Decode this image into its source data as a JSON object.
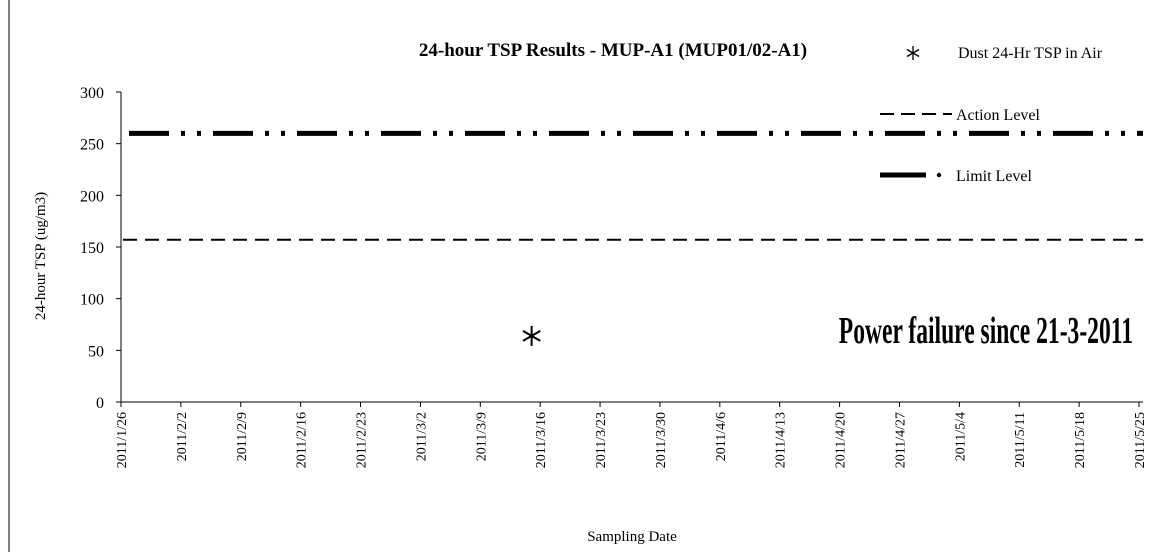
{
  "chart_data": {
    "type": "scatter",
    "title": "24-hour TSP Results - MUP-A1 (MUP01/02-A1)",
    "xlabel": "Sampling Date",
    "ylabel": "24-hour TSP (ug/m3)",
    "ylim": [
      0,
      300
    ],
    "yticks": [
      "0",
      "50",
      "100",
      "150",
      "200",
      "250",
      "300"
    ],
    "xlim": [
      "2011-01-26",
      "2011-05-25"
    ],
    "xticks": [
      "2011/1/26",
      "2011/2/2",
      "2011/2/9",
      "2011/2/16",
      "2011/2/23",
      "2011/3/2",
      "2011/3/9",
      "2011/3/16",
      "2011/3/23",
      "2011/3/30",
      "2011/4/6",
      "2011/4/13",
      "2011/4/20",
      "2011/4/27",
      "2011/5/4",
      "2011/5/11",
      "2011/5/18",
      "2011/5/25"
    ],
    "grid": false,
    "legend_position": "top-right",
    "series": [
      {
        "name": "Dust 24-Hr TSP in Air",
        "points": [
          {
            "x": "2011-03-15",
            "y": 64
          }
        ]
      }
    ],
    "reference_lines": [
      {
        "name": "Action Level",
        "value": 157,
        "style": "dashed"
      },
      {
        "name": "Limit Level",
        "value": 260,
        "style": "dash-dot-dot"
      }
    ],
    "annotation": "Power failure since 21-3-2011"
  }
}
